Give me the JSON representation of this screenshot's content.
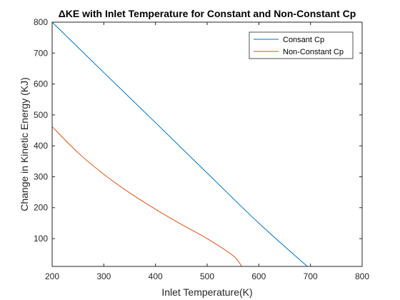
{
  "chart_data": {
    "type": "line",
    "title": "ΔKE with Inlet Temperature for Constant and Non-Constant Cp",
    "xlabel": "Inlet Temperature(K)",
    "ylabel": "Change in Kinetic Energy (KJ)",
    "xlim": [
      200,
      800
    ],
    "ylim": [
      10,
      800
    ],
    "xticks": [
      200,
      300,
      400,
      500,
      600,
      700,
      800
    ],
    "yticks": [
      100,
      200,
      300,
      400,
      500,
      600,
      700,
      800
    ],
    "grid": false,
    "legend_location": "top-right",
    "series": [
      {
        "name": "Consant Cp",
        "color": "#0072BD",
        "x": [
          200,
          300,
          400,
          500,
          600,
          694
        ],
        "y": [
          800,
          637,
          475,
          312,
          150,
          10
        ]
      },
      {
        "name": "Non-Constant Cp",
        "color": "#D95319",
        "x": [
          200,
          250,
          300,
          350,
          400,
          450,
          500,
          550,
          567
        ],
        "y": [
          462,
          378,
          308,
          248,
          195,
          146,
          100,
          45,
          10
        ]
      }
    ]
  }
}
